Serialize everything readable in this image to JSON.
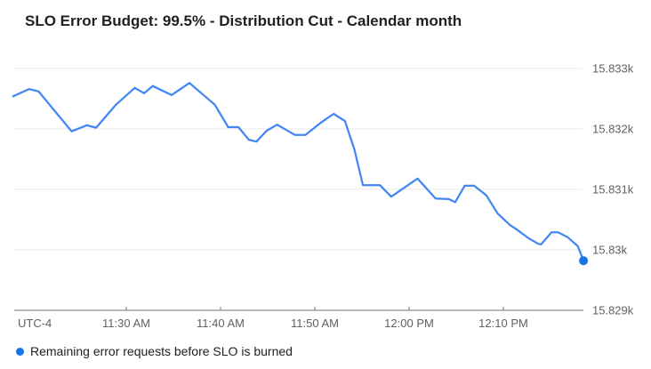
{
  "header": {
    "title": "SLO Error Budget: 99.5% - Distribution Cut - Calendar month"
  },
  "axes": {
    "utc_label": "UTC-4"
  },
  "legend": {
    "label": "Remaining error requests before SLO is burned",
    "marker_color": "#1a73e8"
  },
  "colors": {
    "line": "#4285f4",
    "endpoint": "#1a73e8",
    "grid": "#e8e8e8",
    "axis": "#757575",
    "label_text": "#616161",
    "title_text": "#202124"
  },
  "chart_data": {
    "type": "line",
    "title": "SLO Error Budget: 99.5% - Distribution Cut - Calendar month",
    "xlabel": "time of day (UTC-4)",
    "ylabel": "Remaining error requests before SLO is burned",
    "y_unit": "requests (k = thousand)",
    "grid": "horizontal-only",
    "legend_position": "bottom-left",
    "ylim": [
      15828.99,
      15833.2
    ],
    "y_ticks": [
      {
        "label": "15.833k",
        "value": 15833
      },
      {
        "label": "15.832k",
        "value": 15832
      },
      {
        "label": "15.831k",
        "value": 15831
      },
      {
        "label": "15.83k",
        "value": 15830
      },
      {
        "label": "15.829k",
        "value": 15829
      }
    ],
    "x_ticks": [
      {
        "label": "11:30 AM",
        "t": 12
      },
      {
        "label": "11:40 AM",
        "t": 22
      },
      {
        "label": "11:50 AM",
        "t": 32
      },
      {
        "label": "12:00 PM",
        "t": 42
      },
      {
        "label": "12:10 PM",
        "t": 52
      }
    ],
    "x_range_minutes": [
      0,
      60.5
    ],
    "series": [
      {
        "name": "Remaining error requests before SLO is burned",
        "endpoint_marker": true,
        "points": [
          [
            0.0,
            15832.54
          ],
          [
            1.7,
            15832.66
          ],
          [
            2.7,
            15832.62
          ],
          [
            6.2,
            15831.96
          ],
          [
            7.8,
            15832.06
          ],
          [
            8.8,
            15832.02
          ],
          [
            10.9,
            15832.4
          ],
          [
            12.9,
            15832.68
          ],
          [
            13.9,
            15832.59
          ],
          [
            14.8,
            15832.71
          ],
          [
            16.8,
            15832.56
          ],
          [
            18.7,
            15832.76
          ],
          [
            21.4,
            15832.4
          ],
          [
            22.8,
            15832.03
          ],
          [
            23.9,
            15832.03
          ],
          [
            25.0,
            15831.82
          ],
          [
            25.8,
            15831.79
          ],
          [
            26.9,
            15831.97
          ],
          [
            28.0,
            15832.07
          ],
          [
            29.9,
            15831.9
          ],
          [
            31.0,
            15831.9
          ],
          [
            32.6,
            15832.1
          ],
          [
            34.0,
            15832.25
          ],
          [
            35.2,
            15832.13
          ],
          [
            36.2,
            15831.66
          ],
          [
            37.1,
            15831.07
          ],
          [
            38.9,
            15831.07
          ],
          [
            40.1,
            15830.88
          ],
          [
            42.9,
            15831.18
          ],
          [
            44.8,
            15830.85
          ],
          [
            46.2,
            15830.84
          ],
          [
            46.9,
            15830.79
          ],
          [
            47.9,
            15831.06
          ],
          [
            48.9,
            15831.06
          ],
          [
            50.2,
            15830.9
          ],
          [
            51.4,
            15830.6
          ],
          [
            52.7,
            15830.41
          ],
          [
            53.3,
            15830.35
          ],
          [
            54.7,
            15830.19
          ],
          [
            55.7,
            15830.1
          ],
          [
            56.0,
            15830.09
          ],
          [
            57.1,
            15830.29
          ],
          [
            57.8,
            15830.29
          ],
          [
            58.8,
            15830.21
          ],
          [
            59.9,
            15830.06
          ],
          [
            60.5,
            15829.82
          ]
        ]
      }
    ]
  }
}
